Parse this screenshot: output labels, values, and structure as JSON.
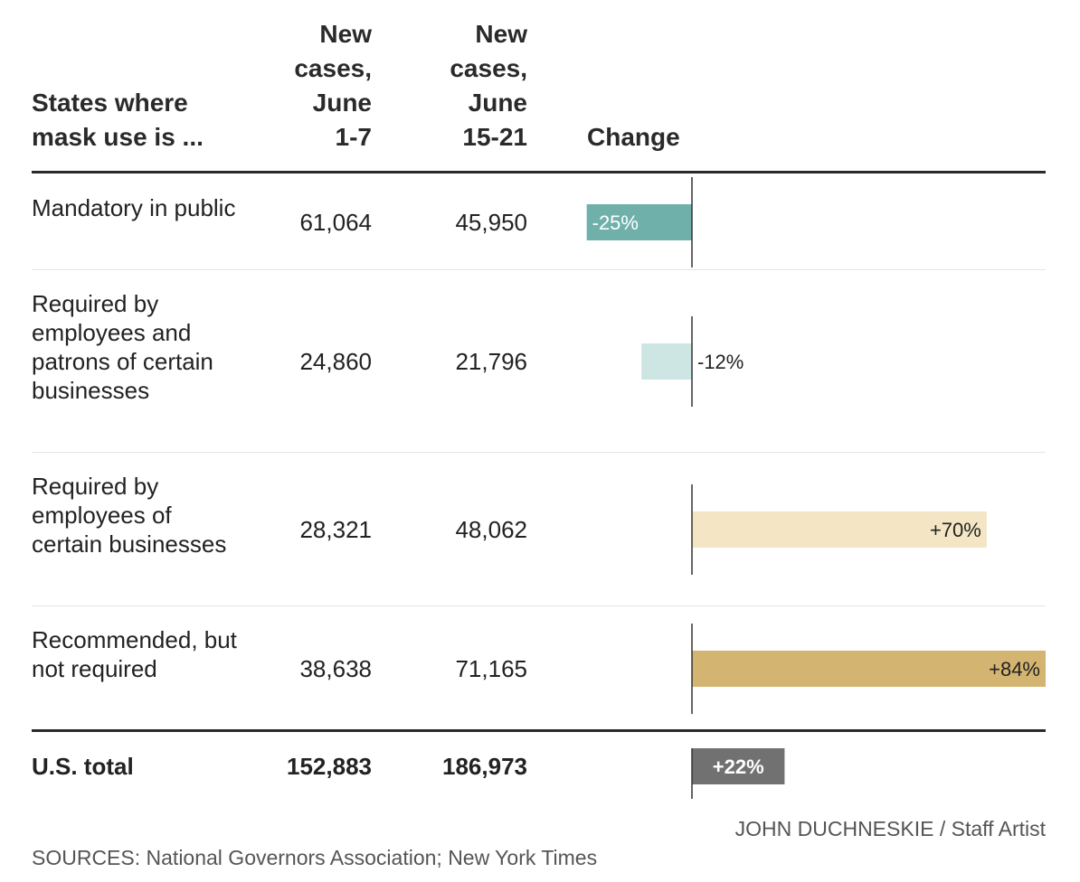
{
  "headers": {
    "states_line1": "States where",
    "states_line2": "mask use is ...",
    "col1_lines": [
      "New",
      "cases,",
      "June",
      "1-7"
    ],
    "col2_lines": [
      "New",
      "cases,",
      "June",
      "15-21"
    ],
    "change": "Change"
  },
  "rows": [
    {
      "label": "Mandatory in public",
      "june_1_7": "61,064",
      "june_15_21": "45,950",
      "change_label": "-25%"
    },
    {
      "label": "Required by employees and patrons of certain businesses",
      "june_1_7": "24,860",
      "june_15_21": "21,796",
      "change_label": "-12%"
    },
    {
      "label": "Required by employees of certain businesses",
      "june_1_7": "28,321",
      "june_15_21": "48,062",
      "change_label": "+70%"
    },
    {
      "label": "Recommended, but not required",
      "june_1_7": "38,638",
      "june_15_21": "71,165",
      "change_label": "+84%"
    }
  ],
  "total": {
    "label": "U.S. total",
    "june_1_7": "152,883",
    "june_15_21": "186,973",
    "change_label": "+22%"
  },
  "credit": "JOHN DUCHNESKIE / Staff Artist",
  "sources": "SOURCES: National Governors Association; New York Times",
  "colors": {
    "mandatory": "#6fb1aa",
    "employees_patrons": "#cde6e3",
    "employees": "#f4e6c4",
    "recommended": "#d3b470",
    "total": "#717171",
    "axis": "#333333"
  },
  "chart_data": {
    "type": "bar",
    "orientation": "horizontal",
    "categories": [
      "Mandatory in public",
      "Required by employees and patrons of certain businesses",
      "Required by employees of certain businesses",
      "Recommended, but not required",
      "U.S. total"
    ],
    "values": [
      -25,
      -12,
      70,
      84,
      22
    ],
    "title": "",
    "xlabel": "Change",
    "ylabel": "",
    "unit": "%",
    "xlim": [
      -25,
      84
    ]
  }
}
